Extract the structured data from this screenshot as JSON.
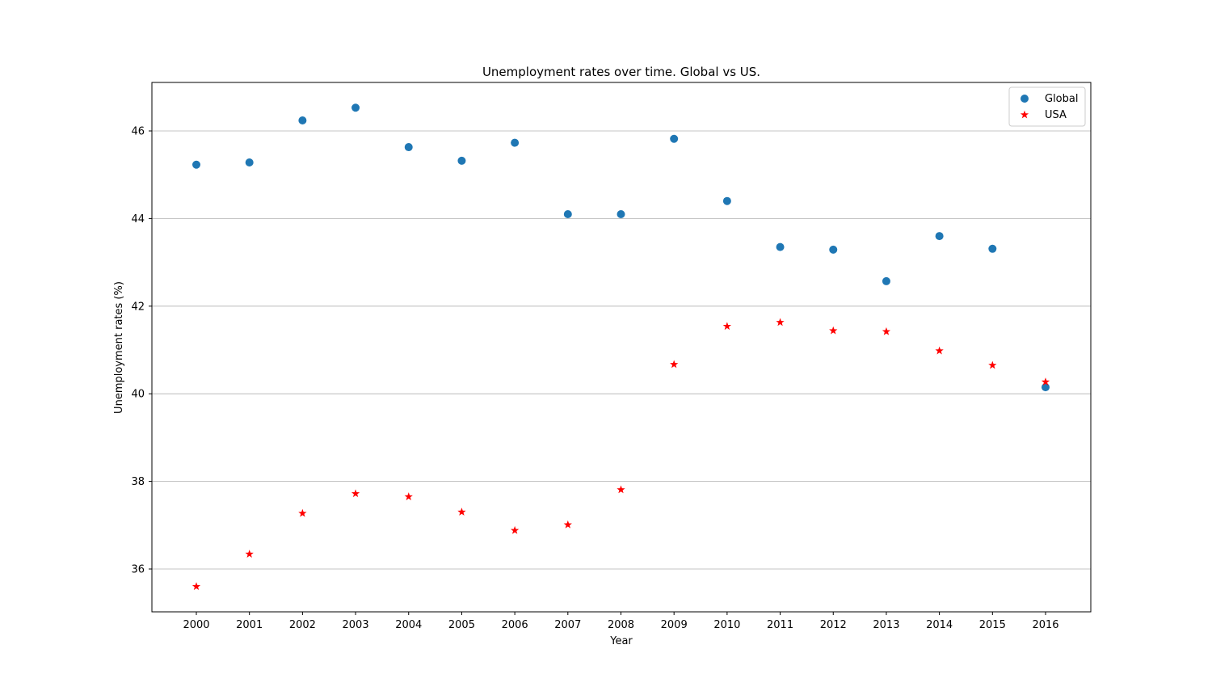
{
  "chart_data": {
    "type": "scatter",
    "title": "Unemployment rates over time. Global vs US.",
    "xlabel": "Year",
    "ylabel": "Unemployment rates (%)",
    "x": [
      "2000",
      "2001",
      "2002",
      "2003",
      "2004",
      "2005",
      "2006",
      "2007",
      "2008",
      "2009",
      "2010",
      "2011",
      "2012",
      "2013",
      "2014",
      "2015",
      "2016"
    ],
    "ylim": [
      35,
      47
    ],
    "yticks": [
      36,
      38,
      40,
      42,
      44,
      46
    ],
    "grid": "horizontal",
    "legend_position": "top-right",
    "series": [
      {
        "name": "Global",
        "marker": "circle",
        "color": "#1f77b4",
        "values": [
          45.23,
          45.28,
          46.24,
          46.53,
          45.63,
          45.32,
          45.73,
          44.1,
          44.1,
          45.82,
          44.4,
          43.35,
          43.29,
          42.57,
          43.6,
          43.31,
          40.15
        ]
      },
      {
        "name": "USA",
        "marker": "star",
        "color": "#ff0000",
        "values": [
          35.6,
          36.34,
          37.27,
          37.72,
          37.65,
          37.3,
          36.88,
          37.01,
          37.81,
          40.67,
          41.54,
          41.63,
          41.44,
          41.42,
          40.98,
          40.65,
          40.27
        ]
      }
    ]
  }
}
